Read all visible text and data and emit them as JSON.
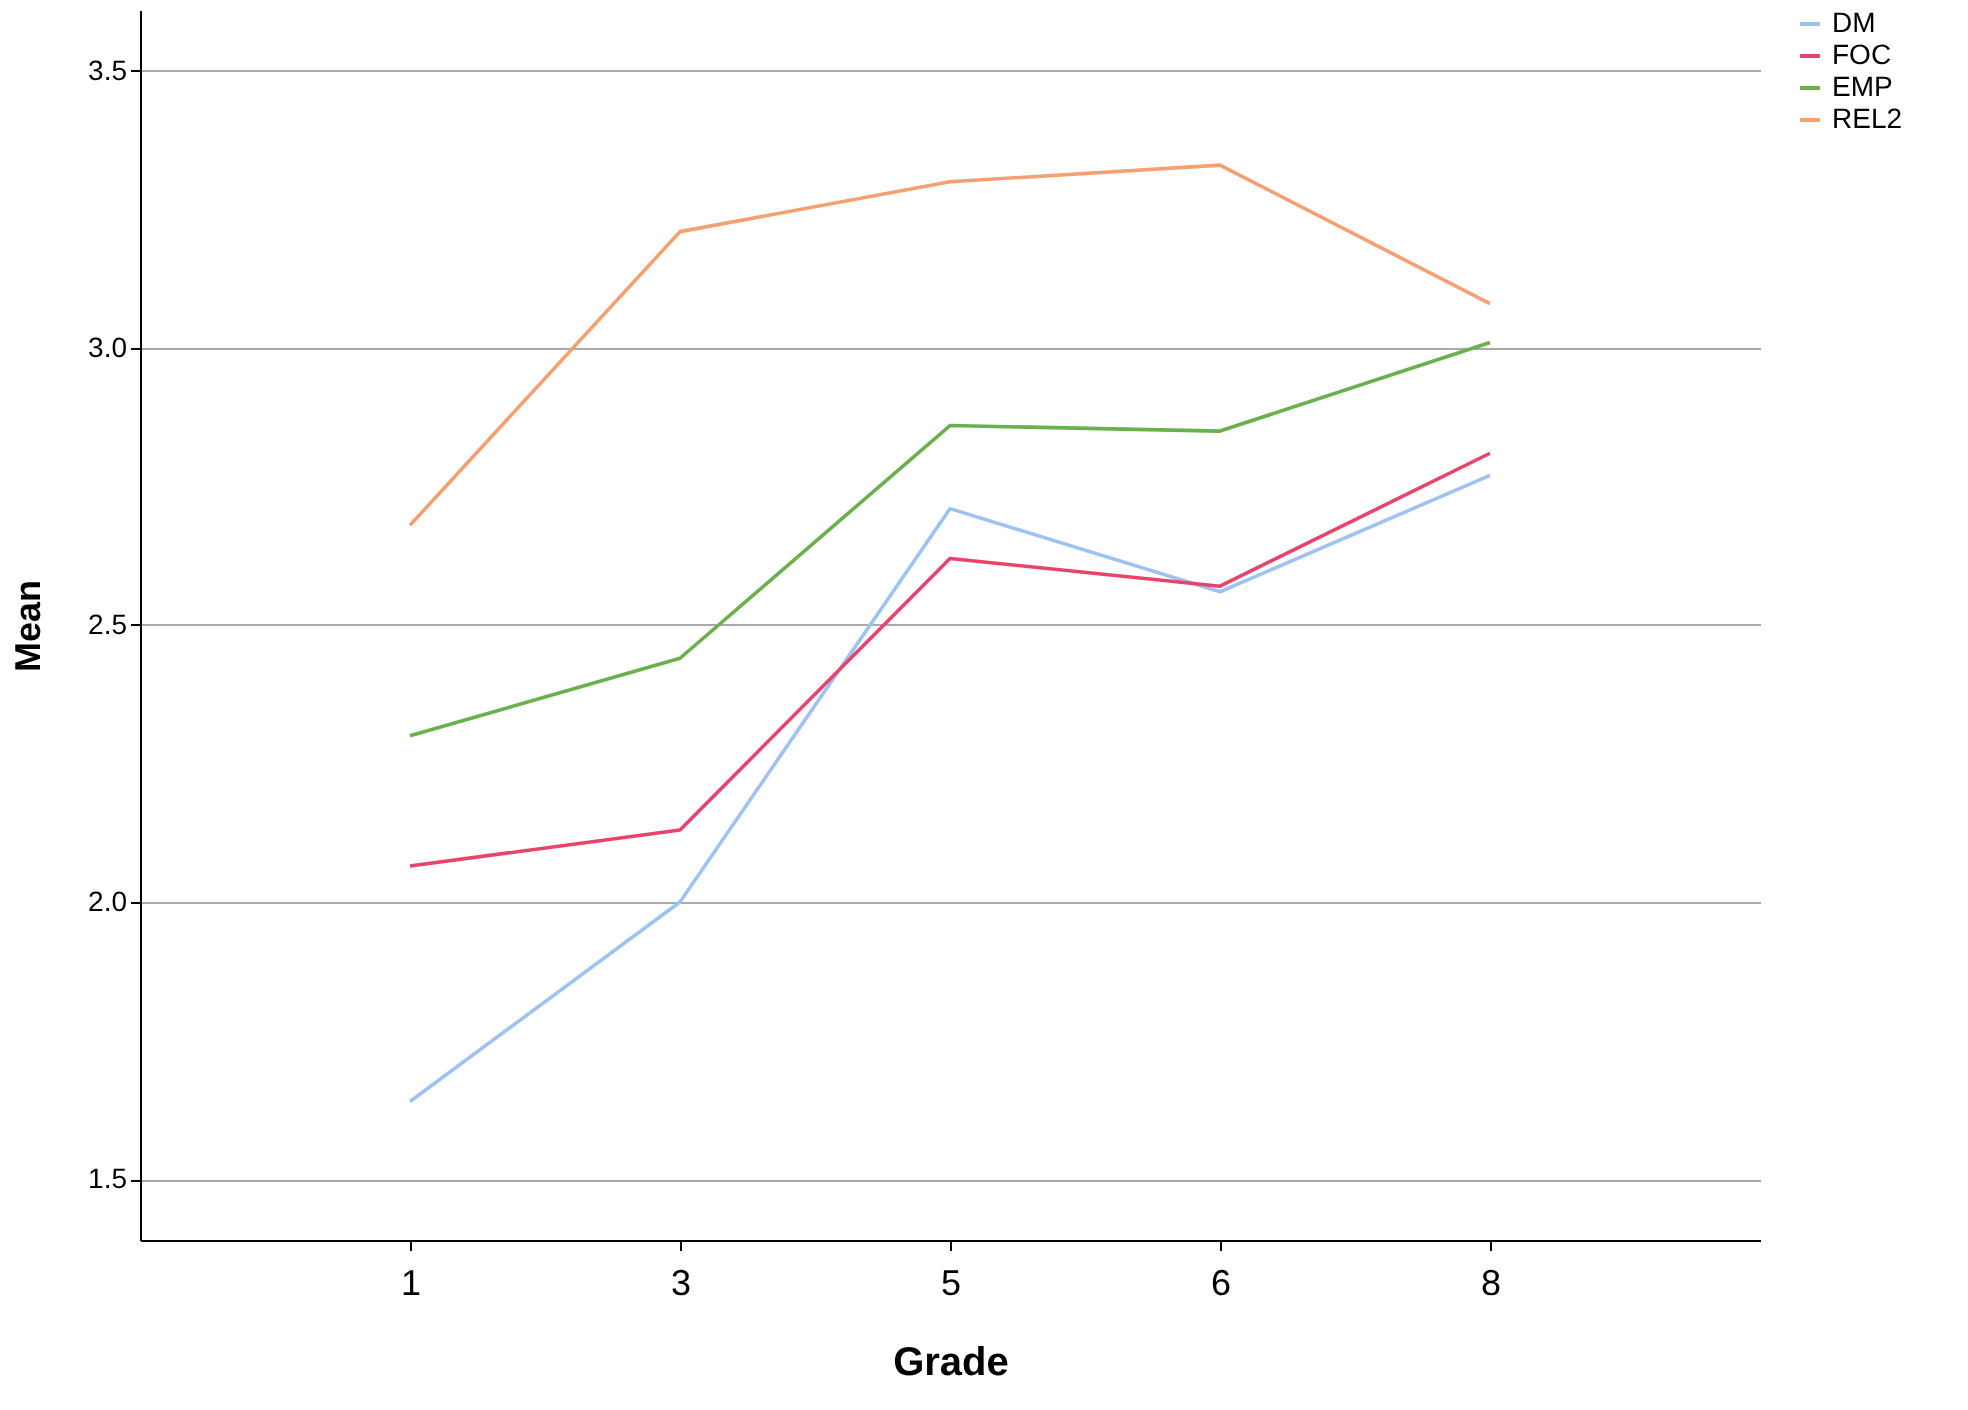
{
  "chart_data": {
    "type": "line",
    "xlabel": "Grade",
    "ylabel": "Mean",
    "categories": [
      "1",
      "3",
      "5",
      "6",
      "8"
    ],
    "series": [
      {
        "name": "DM",
        "color": "#9ec3f0",
        "values": [
          1.64,
          2.0,
          2.71,
          2.56,
          2.77
        ]
      },
      {
        "name": "FOC",
        "color": "#e8436a",
        "values": [
          2.065,
          2.13,
          2.62,
          2.57,
          2.81
        ]
      },
      {
        "name": "EMP",
        "color": "#6ab04c",
        "values": [
          2.3,
          2.44,
          2.86,
          2.85,
          3.01
        ]
      },
      {
        "name": "REL2",
        "color": "#f5a070",
        "values": [
          2.68,
          3.21,
          3.3,
          3.33,
          3.08
        ]
      }
    ],
    "ylim": [
      1.39,
      3.61
    ],
    "yticks": [
      1.5,
      {
        "value": 2,
        "label": "2.0"
      },
      2.5,
      {
        "value": 3,
        "label": "3.0"
      },
      3.5
    ],
    "grid": "y",
    "legend": "top right",
    "marker": "none",
    "line_style": "solid"
  }
}
